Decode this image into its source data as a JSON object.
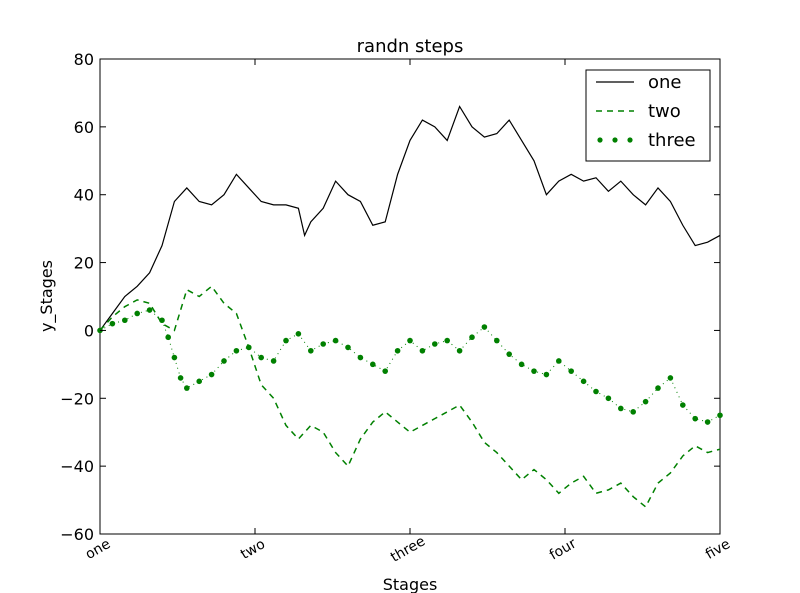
{
  "chart_data": {
    "type": "line",
    "title": "randn steps",
    "xlabel": "Stages",
    "ylabel": "y_Stages",
    "xlim": [
      0,
      1000
    ],
    "ylim": [
      -60,
      80
    ],
    "xticks": [
      0,
      250,
      500,
      750,
      1000
    ],
    "xtick_labels": [
      "one",
      "two",
      "three",
      "four",
      "five"
    ],
    "yticks": [
      -60,
      -40,
      -20,
      0,
      20,
      40,
      60,
      80
    ],
    "ytick_labels": [
      "−60",
      "−40",
      "−20",
      "0",
      "20",
      "40",
      "60",
      "80"
    ],
    "grid": false,
    "legend_position": "upper right",
    "series": [
      {
        "name": "one",
        "color": "#000000",
        "style": "solid",
        "x": [
          0,
          20,
          40,
          60,
          80,
          100,
          120,
          140,
          160,
          180,
          200,
          220,
          240,
          260,
          280,
          300,
          320,
          330,
          340,
          360,
          380,
          400,
          420,
          440,
          460,
          480,
          500,
          520,
          540,
          560,
          580,
          600,
          620,
          640,
          660,
          680,
          700,
          720,
          740,
          760,
          780,
          800,
          820,
          840,
          860,
          880,
          900,
          920,
          940,
          960,
          980,
          1000
        ],
        "y": [
          0,
          5,
          10,
          13,
          17,
          25,
          38,
          42,
          38,
          37,
          40,
          46,
          42,
          38,
          37,
          37,
          36,
          28,
          32,
          36,
          44,
          40,
          38,
          31,
          32,
          46,
          56,
          62,
          60,
          56,
          66,
          60,
          57,
          58,
          62,
          56,
          50,
          40,
          44,
          46,
          44,
          45,
          41,
          44,
          40,
          37,
          42,
          38,
          31,
          25,
          26,
          28
        ]
      },
      {
        "name": "two",
        "color": "#008000",
        "style": "dashed",
        "x": [
          0,
          20,
          40,
          60,
          80,
          100,
          120,
          140,
          160,
          180,
          200,
          220,
          240,
          260,
          280,
          300,
          320,
          340,
          360,
          380,
          400,
          420,
          440,
          460,
          480,
          500,
          520,
          540,
          560,
          580,
          600,
          620,
          640,
          660,
          680,
          700,
          720,
          740,
          760,
          780,
          800,
          820,
          840,
          860,
          880,
          900,
          920,
          940,
          960,
          980,
          1000
        ],
        "y": [
          0,
          4,
          7,
          9,
          8,
          2,
          0,
          12,
          10,
          13,
          8,
          5,
          -5,
          -16,
          -20,
          -28,
          -32,
          -28,
          -30,
          -36,
          -40,
          -32,
          -27,
          -24,
          -27,
          -30,
          -28,
          -26,
          -24,
          -22,
          -27,
          -33,
          -36,
          -40,
          -44,
          -41,
          -44,
          -48,
          -45,
          -43,
          -48,
          -47,
          -45,
          -49,
          -52,
          -45,
          -42,
          -37,
          -34,
          -36,
          -35
        ]
      },
      {
        "name": "three",
        "color": "#008000",
        "style": "dotted-markers",
        "x": [
          0,
          20,
          40,
          60,
          80,
          100,
          110,
          120,
          130,
          140,
          160,
          180,
          200,
          220,
          240,
          260,
          280,
          300,
          320,
          340,
          360,
          380,
          400,
          420,
          440,
          460,
          480,
          500,
          520,
          540,
          560,
          580,
          600,
          620,
          640,
          660,
          680,
          700,
          720,
          740,
          760,
          780,
          800,
          820,
          840,
          860,
          880,
          900,
          920,
          940,
          960,
          980,
          1000
        ],
        "y": [
          0,
          2,
          3,
          5,
          6,
          3,
          -2,
          -8,
          -14,
          -17,
          -15,
          -13,
          -9,
          -6,
          -5,
          -8,
          -9,
          -3,
          -1,
          -6,
          -4,
          -3,
          -5,
          -8,
          -10,
          -12,
          -6,
          -3,
          -6,
          -4,
          -3,
          -6,
          -2,
          1,
          -3,
          -7,
          -10,
          -12,
          -13,
          -9,
          -12,
          -15,
          -18,
          -20,
          -23,
          -24,
          -21,
          -17,
          -14,
          -22,
          -26,
          -27,
          -25
        ]
      }
    ]
  }
}
